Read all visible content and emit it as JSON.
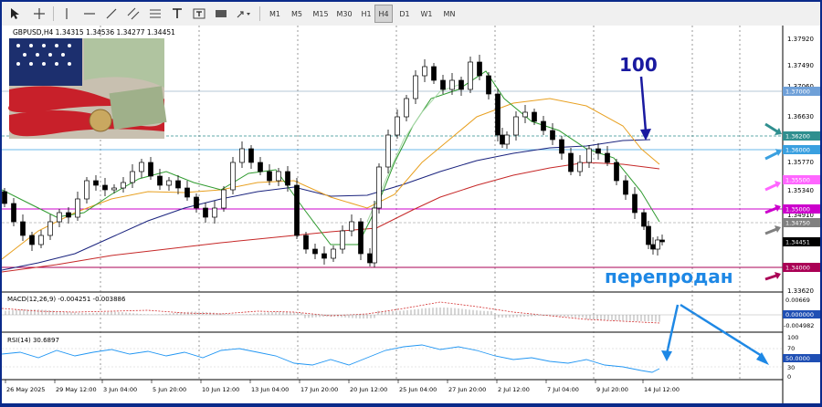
{
  "toolbar": {
    "timeframes": [
      "M1",
      "M5",
      "M15",
      "M30",
      "H1",
      "H4",
      "D1",
      "W1",
      "MN"
    ],
    "active_timeframe": "H4"
  },
  "chart": {
    "symbol_line": "GBPUSD,H4  1.34315 1.34536 1.34277 1.34451",
    "price_ticks": [
      "1.37920",
      "1.37490",
      "1.37060",
      "1.36630",
      "1.36200",
      "1.35770",
      "1.35340",
      "1.34910",
      "1.34480",
      "1.34050",
      "1.33620"
    ],
    "level_labels": [
      {
        "text": "1.37000",
        "color": "#6fa0d8"
      },
      {
        "text": "1.36200",
        "color": "#2f8f8f"
      },
      {
        "text": "1.36000",
        "color": "#3aa0e0"
      },
      {
        "text": "1.35500",
        "color": "#ff66ff"
      },
      {
        "text": "1.35000",
        "color": "#cc00cc"
      },
      {
        "text": "1.34750",
        "color": "#808080"
      },
      {
        "text": "1.34451",
        "color": "#000000"
      },
      {
        "text": "1.34000",
        "color": "#aa0055"
      }
    ],
    "date_ticks": [
      "26 May 2025",
      "29 May 12:00",
      "3 Jun 04:00",
      "5 Jun 20:00",
      "10 Jun 12:00",
      "13 Jun 04:00",
      "17 Jun 20:00",
      "20 Jun 12:00",
      "25 Jun 04:00",
      "27 Jun 20:00",
      "2 Jul 12:00",
      "7 Jul 04:00",
      "9 Jul 20:00",
      "14 Jul 12:00"
    ],
    "annotation_100": "100",
    "annotation_oversold": "перепродан"
  },
  "macd": {
    "label": "MACD(12,26,9) -0.004251 -0.003886",
    "ticks": [
      "0.00669",
      "0.000000",
      "-0.004982"
    ]
  },
  "rsi": {
    "label": "RSI(14) 30.6897",
    "ticks": [
      "100",
      "70",
      "50.0000",
      "30",
      "0"
    ]
  },
  "colors": {
    "frame": "#0a2a8a",
    "candle": "#000000",
    "ma_green": "#2e9a2e",
    "ma_orange": "#e8a020",
    "ma_navy": "#1a237e",
    "ma_red": "#c62828",
    "macd_signal": "#d32f2f",
    "rsi_line": "#2196f3",
    "annotation_blue": "#1e88e5",
    "annotation_navy": "#1a1aa0"
  },
  "icons": [
    "cursor-icon",
    "crosshair-icon",
    "vertical-line-icon",
    "horizontal-line-icon",
    "trendline-icon",
    "equidistant-channel-icon",
    "fibonacci-icon",
    "text-icon",
    "label-icon",
    "rectangle-icon",
    "arrow-icon"
  ]
}
